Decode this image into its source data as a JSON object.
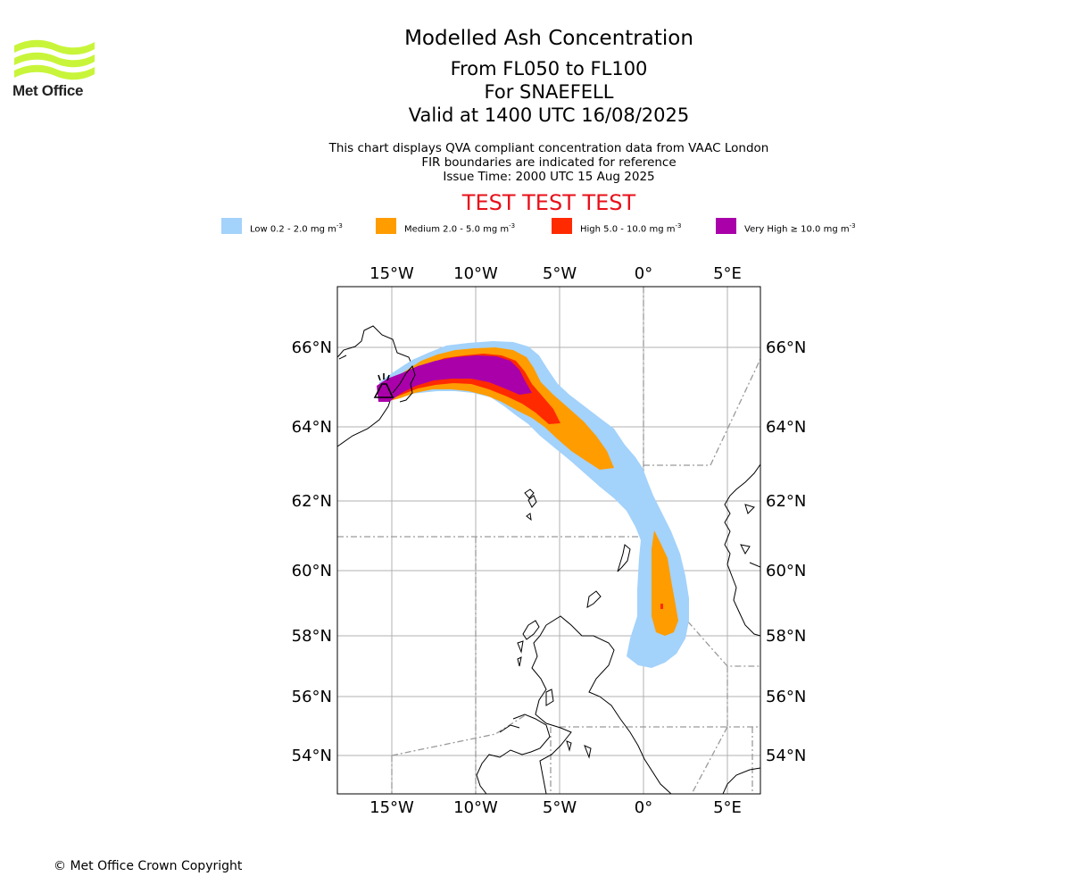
{
  "header": {
    "logo_text": "Met Office",
    "title": "Modelled Ash Concentration",
    "levels": "From FL050 to FL100",
    "volcano": "For SNAEFELL",
    "valid": "Valid at 1400 UTC 16/08/2025"
  },
  "info": {
    "line1": "This chart displays QVA compliant concentration data from VAAC London",
    "line2": "FIR boundaries are indicated for reference",
    "line3": "Issue Time: 2000 UTC 15 Aug 2025"
  },
  "test_banner": "TEST TEST TEST",
  "legend": [
    {
      "label": "Low 0.2 - 2.0 mg m",
      "exp": "-3",
      "color": "#a3d2fb"
    },
    {
      "label": "Medium 2.0 - 5.0 mg m",
      "exp": "-3",
      "color": "#ff9c00"
    },
    {
      "label": "High 5.0 - 10.0 mg m",
      "exp": "-3",
      "color": "#ff2a00"
    },
    {
      "label": "Very High ≥ 10.0 mg m",
      "exp": "-3",
      "color": "#aa00aa"
    }
  ],
  "map": {
    "lon_ticks": [
      "15°W",
      "10°W",
      "5°W",
      "0°",
      "5°E"
    ],
    "lat_ticks": [
      "66°N",
      "64°N",
      "62°N",
      "60°N",
      "58°N",
      "56°N",
      "54°N"
    ],
    "volcano_icon": "volcano-icon"
  },
  "footer": {
    "copyright": "© Met Office Crown Copyright"
  }
}
